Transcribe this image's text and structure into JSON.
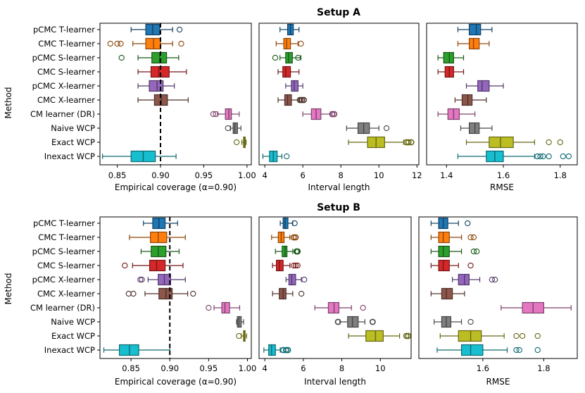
{
  "figure": {
    "ylabel": "Method"
  },
  "colors": [
    "#1f77b4",
    "#ff7f0e",
    "#2ca02c",
    "#d62728",
    "#9467bd",
    "#8c564b",
    "#e377c2",
    "#7f7f7f",
    "#bcbd22",
    "#17becf"
  ],
  "chart_data": [
    {
      "type": "boxplot",
      "setup": "Setup A",
      "title": "Setup A",
      "methods": [
        "pCMC T-learner",
        "CMC T-learner",
        "pCMC S-learner",
        "CMC S-learner",
        "pCMC X-learner",
        "CMC X-learner",
        "CM learner (DR)",
        "Naive WCP",
        "Exact WCP",
        "Inexact WCP"
      ],
      "panels": [
        {
          "xlabel": "Empirical coverage (α=0.90)",
          "xlim": [
            0.83,
            1.005
          ],
          "ticks": [
            0.85,
            0.9,
            0.95,
            1.0
          ],
          "tick_labels": [
            "0.85",
            "0.90",
            "0.95",
            "1.00"
          ],
          "refline": 0.9,
          "stats": [
            [
              0.866,
              0.883,
              0.891,
              0.899,
              0.914
            ],
            [
              0.868,
              0.883,
              0.892,
              0.9,
              0.914
            ],
            [
              0.874,
              0.89,
              0.899,
              0.907,
              0.921
            ],
            [
              0.874,
              0.889,
              0.898,
              0.91,
              0.93
            ],
            [
              0.874,
              0.887,
              0.896,
              0.903,
              0.916
            ],
            [
              0.874,
              0.893,
              0.901,
              0.908,
              0.932
            ],
            [
              0.966,
              0.975,
              0.979,
              0.982,
              0.991
            ],
            [
              0.981,
              0.984,
              0.986,
              0.989,
              0.993
            ],
            [
              0.994,
              0.996,
              0.997,
              0.998,
              0.999
            ],
            [
              0.833,
              0.866,
              0.88,
              0.894,
              0.918
            ]
          ],
          "outliers": [
            [
              0.922
            ],
            [
              0.842,
              0.85,
              0.854,
              0.924
            ],
            [
              0.855
            ],
            [],
            [],
            [],
            [
              0.961,
              0.964
            ],
            [
              0.978
            ],
            [
              0.988
            ],
            []
          ]
        },
        {
          "xlabel": "Interval length",
          "xlim": [
            3.7,
            12.1
          ],
          "ticks": [
            4,
            6,
            8,
            10,
            12
          ],
          "tick_labels": [
            "4",
            "6",
            "8",
            "10",
            "12"
          ],
          "refline": null,
          "stats": [
            [
              4.8,
              5.2,
              5.35,
              5.5,
              5.8
            ],
            [
              4.6,
              5.0,
              5.15,
              5.35,
              5.75
            ],
            [
              4.8,
              5.1,
              5.25,
              5.45,
              5.9
            ],
            [
              4.7,
              4.95,
              5.1,
              5.35,
              5.8
            ],
            [
              5.1,
              5.4,
              5.55,
              5.75,
              6.0
            ],
            [
              4.7,
              5.05,
              5.2,
              5.4,
              5.8
            ],
            [
              6.0,
              6.45,
              6.7,
              6.95,
              7.45
            ],
            [
              8.3,
              8.9,
              9.2,
              9.5,
              10.0
            ],
            [
              8.4,
              9.4,
              9.85,
              10.3,
              11.3
            ],
            [
              3.9,
              4.25,
              4.45,
              4.65,
              4.9
            ]
          ],
          "outliers": [
            [],
            [
              5.9
            ],
            [
              4.55,
              5.75
            ],
            [],
            [],
            [
              5.85,
              5.95,
              6.05
            ],
            [
              7.55,
              7.65
            ],
            [
              10.4
            ],
            [
              11.45,
              11.55,
              11.7
            ],
            [
              5.15
            ]
          ],
          "bold_outlier": [
            false,
            false,
            false,
            false,
            false,
            true,
            true,
            false,
            true,
            false
          ]
        },
        {
          "xlabel": "RMSE",
          "xlim": [
            1.33,
            1.86
          ],
          "ticks": [
            1.4,
            1.6,
            1.8
          ],
          "tick_labels": [
            "1.4",
            "1.6",
            "1.8"
          ],
          "refline": null,
          "stats": [
            [
              1.44,
              1.48,
              1.505,
              1.52,
              1.56
            ],
            [
              1.44,
              1.48,
              1.495,
              1.515,
              1.55
            ],
            [
              1.37,
              1.39,
              1.41,
              1.425,
              1.46
            ],
            [
              1.37,
              1.395,
              1.41,
              1.425,
              1.46
            ],
            [
              1.47,
              1.51,
              1.525,
              1.55,
              1.6
            ],
            [
              1.43,
              1.455,
              1.475,
              1.49,
              1.54
            ],
            [
              1.37,
              1.405,
              1.425,
              1.445,
              1.5
            ],
            [
              1.45,
              1.48,
              1.5,
              1.515,
              1.56
            ],
            [
              1.47,
              1.55,
              1.59,
              1.635,
              1.71
            ],
            [
              1.44,
              1.54,
              1.57,
              1.6,
              1.71
            ]
          ],
          "outliers": [
            [],
            [],
            [],
            [],
            [],
            [],
            [],
            [],
            [
              1.76,
              1.8
            ],
            [
              1.72,
              1.73,
              1.74,
              1.76,
              1.81,
              1.83
            ]
          ]
        }
      ]
    },
    {
      "type": "boxplot",
      "setup": "Setup B",
      "title": "Setup B",
      "methods": [
        "pCMC T-learner",
        "CMC T-learner",
        "pCMC S-learner",
        "CMC S-learner",
        "pCMC X-learner",
        "CMC X-learner",
        "CM learner (DR)",
        "Naive WCP",
        "Exact WCP",
        "Inexact WCP"
      ],
      "panels": [
        {
          "xlabel": "Empirical coverage (α=0.90)",
          "xlim": [
            0.81,
            1.005
          ],
          "ticks": [
            0.85,
            0.9,
            0.95,
            1.0
          ],
          "tick_labels": [
            "0.85",
            "0.90",
            "0.95",
            "1.00"
          ],
          "refline": 0.9,
          "stats": [
            [
              0.866,
              0.878,
              0.886,
              0.894,
              0.91
            ],
            [
              0.848,
              0.875,
              0.885,
              0.896,
              0.92
            ],
            [
              0.863,
              0.876,
              0.885,
              0.895,
              0.912
            ],
            [
              0.852,
              0.874,
              0.883,
              0.894,
              0.917
            ],
            [
              0.872,
              0.885,
              0.893,
              0.901,
              0.92
            ],
            [
              0.868,
              0.886,
              0.895,
              0.903,
              0.923
            ],
            [
              0.957,
              0.967,
              0.971,
              0.977,
              0.99
            ],
            [
              0.986,
              0.987,
              0.989,
              0.992,
              0.995
            ],
            [
              0.992,
              0.995,
              0.996,
              0.997,
              0.999
            ],
            [
              0.815,
              0.835,
              0.848,
              0.86,
              0.9
            ]
          ],
          "outliers": [
            [],
            [],
            [],
            [
              0.842
            ],
            [
              0.862,
              0.864
            ],
            [
              0.847,
              0.853,
              0.93
            ],
            [
              0.95
            ],
            [],
            [
              0.989
            ],
            []
          ]
        },
        {
          "xlabel": "Interval length",
          "xlim": [
            3.7,
            11.6
          ],
          "ticks": [
            4,
            6,
            8,
            10
          ],
          "tick_labels": [
            "4",
            "6",
            "8",
            "10"
          ],
          "refline": null,
          "stats": [
            [
              4.8,
              4.95,
              5.05,
              5.2,
              5.45
            ],
            [
              4.35,
              4.7,
              4.85,
              5.0,
              5.3
            ],
            [
              4.55,
              4.9,
              5.05,
              5.15,
              5.45
            ],
            [
              4.4,
              4.6,
              4.75,
              4.95,
              5.3
            ],
            [
              5.1,
              5.25,
              5.4,
              5.6,
              5.9
            ],
            [
              4.4,
              4.75,
              4.95,
              5.1,
              5.45
            ],
            [
              6.6,
              7.3,
              7.6,
              7.85,
              8.5
            ],
            [
              7.9,
              8.3,
              8.55,
              8.85,
              9.2
            ],
            [
              8.35,
              9.25,
              9.75,
              10.15,
              11.0
            ],
            [
              3.95,
              4.2,
              4.35,
              4.55,
              4.8
            ]
          ],
          "outliers": [
            [
              5.55
            ],
            [
              5.5,
              5.6
            ],
            [
              5.65,
              5.7
            ],
            [
              5.5,
              5.6,
              5.7
            ],
            [
              6.05
            ],
            [
              5.9
            ],
            [
              9.1
            ],
            [
              7.8,
              9.6
            ],
            [
              11.35,
              11.45
            ],
            [
              4.95,
              5.1,
              5.2
            ]
          ],
          "bold_outlier": [
            false,
            true,
            true,
            false,
            false,
            false,
            false,
            true,
            true,
            true
          ]
        },
        {
          "xlabel": "RMSE",
          "xlim": [
            1.39,
            1.91
          ],
          "ticks": [
            1.6,
            1.8
          ],
          "tick_labels": [
            "1.6",
            "1.8"
          ],
          "refline": null,
          "stats": [
            [
              1.43,
              1.455,
              1.47,
              1.485,
              1.52
            ],
            [
              1.43,
              1.455,
              1.47,
              1.49,
              1.53
            ],
            [
              1.43,
              1.455,
              1.47,
              1.49,
              1.53
            ],
            [
              1.43,
              1.455,
              1.47,
              1.49,
              1.52
            ],
            [
              1.5,
              1.52,
              1.54,
              1.555,
              1.59
            ],
            [
              1.43,
              1.465,
              1.48,
              1.5,
              1.54
            ],
            [
              1.66,
              1.73,
              1.765,
              1.8,
              1.89
            ],
            [
              1.44,
              1.465,
              1.48,
              1.495,
              1.53
            ],
            [
              1.46,
              1.52,
              1.56,
              1.595,
              1.67
            ],
            [
              1.45,
              1.53,
              1.56,
              1.6,
              1.68
            ]
          ],
          "outliers": [
            [
              1.55
            ],
            [
              1.56,
              1.57
            ],
            [
              1.57,
              1.58
            ],
            [
              1.56
            ],
            [
              1.63,
              1.64
            ],
            [],
            [],
            [
              1.56
            ],
            [
              1.71,
              1.73,
              1.78
            ],
            [
              1.71,
              1.72,
              1.78
            ]
          ]
        }
      ]
    }
  ]
}
